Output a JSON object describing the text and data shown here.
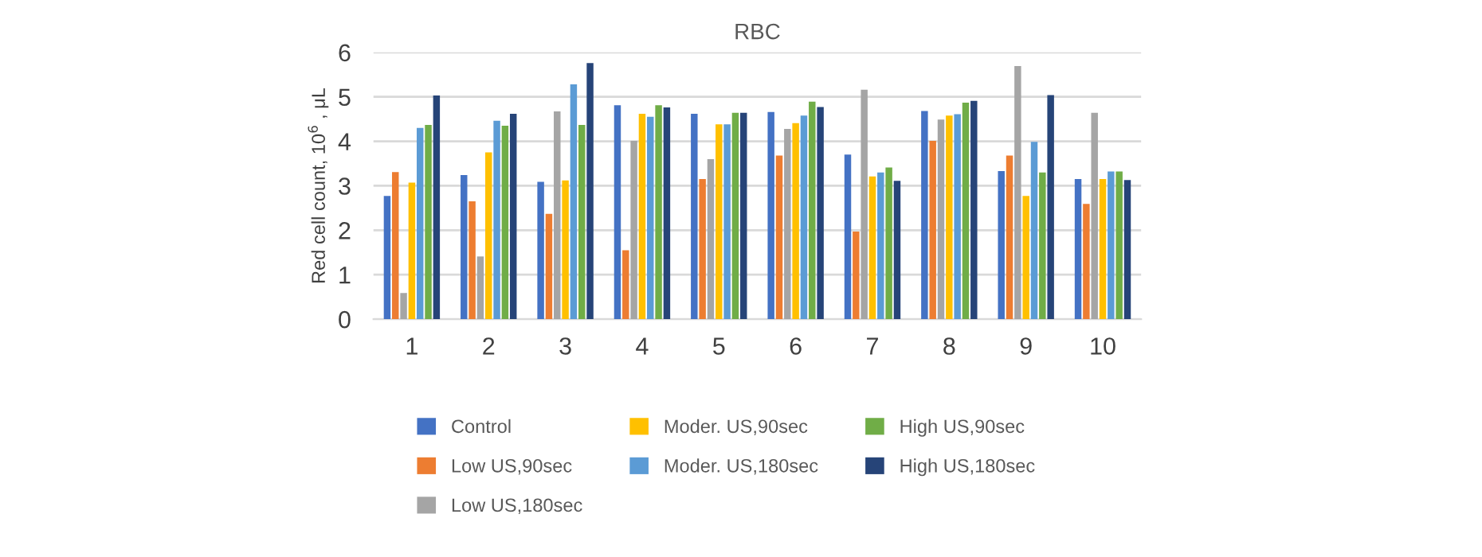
{
  "chart_data": {
    "type": "bar",
    "title": "RBC",
    "ylabel": "Red cell count, 10$^{6}$ , μL",
    "categories": [
      "1",
      "2",
      "3",
      "4",
      "5",
      "6",
      "7",
      "8",
      "9",
      "10"
    ],
    "series": [
      {
        "name": "Control",
        "color": "#4472c4",
        "values": [
          2.77,
          3.24,
          3.09,
          4.81,
          4.62,
          4.66,
          3.7,
          4.68,
          3.33,
          3.15
        ]
      },
      {
        "name": "Low US,90sec",
        "color": "#ed7d31",
        "values": [
          3.31,
          2.65,
          2.37,
          1.55,
          3.15,
          3.68,
          1.97,
          4.01,
          3.68,
          2.59
        ]
      },
      {
        "name": "Low US,180sec",
        "color": "#a5a5a5",
        "values": [
          0.59,
          1.41,
          4.67,
          4.01,
          3.6,
          4.28,
          5.16,
          4.49,
          5.69,
          4.64
        ]
      },
      {
        "name": "Moder. US,90sec",
        "color": "#ffc000",
        "values": [
          3.07,
          3.75,
          3.12,
          4.62,
          4.38,
          4.41,
          3.21,
          4.58,
          2.77,
          3.15
        ]
      },
      {
        "name": "Moder. US,180sec",
        "color": "#5b9bd5",
        "values": [
          4.3,
          4.46,
          5.28,
          4.55,
          4.38,
          4.58,
          3.3,
          4.61,
          3.99,
          3.32
        ]
      },
      {
        "name": "High US,90sec",
        "color": "#70ad47",
        "values": [
          4.37,
          4.35,
          4.37,
          4.81,
          4.64,
          4.89,
          3.41,
          4.87,
          3.3,
          3.32
        ]
      },
      {
        "name": "High US,180sec",
        "color": "#264478",
        "values": [
          5.03,
          4.62,
          5.76,
          4.76,
          4.64,
          4.77,
          3.11,
          4.91,
          5.04,
          3.13
        ]
      }
    ],
    "ylim": [
      0,
      6
    ],
    "yticks": [
      0,
      1,
      2,
      3,
      4,
      5,
      6
    ],
    "grid": "y",
    "legend": "bottom"
  }
}
